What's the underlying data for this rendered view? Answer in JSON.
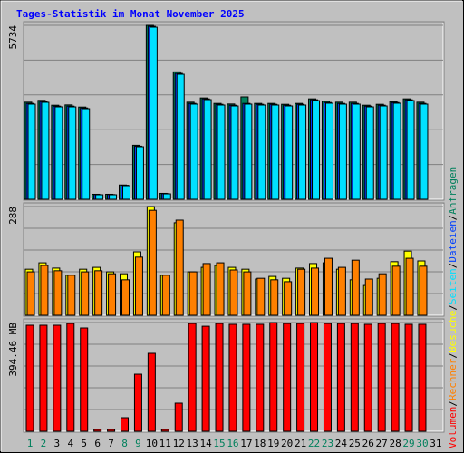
{
  "title": "Tages-Statistik im Monat November 2025",
  "legend_separator": "/",
  "chart_data": [
    {
      "type": "bar",
      "ylim": [
        0,
        5734
      ],
      "yticks": [
        5734
      ],
      "series": [
        {
          "name": "Anfragen",
          "color": "#00805c",
          "values": [
            3200,
            3260,
            3100,
            3110,
            3040,
            165,
            165,
            470,
            1780,
            5734,
            195,
            4200,
            3200,
            3340,
            3160,
            3140,
            3375,
            3160,
            3160,
            3130,
            3160,
            3310,
            3230,
            3200,
            3200,
            3100,
            3130,
            3220,
            3310,
            3200,
            null
          ]
        },
        {
          "name": "Dateien",
          "color": "#0040ff",
          "values": [
            3160,
            3220,
            3070,
            3070,
            3010,
            155,
            155,
            460,
            1750,
            5700,
            185,
            4150,
            3160,
            3310,
            3130,
            3100,
            3160,
            3130,
            3130,
            3100,
            3130,
            3280,
            3190,
            3160,
            3160,
            3070,
            3100,
            3190,
            3280,
            3160,
            null
          ]
        },
        {
          "name": "Seiten",
          "color": "#00e0ff",
          "values": [
            3136,
            3196,
            3046,
            3046,
            2986,
            149,
            149,
            448,
            1732,
            5674,
            179,
            4121,
            3136,
            3285,
            3106,
            3076,
            3136,
            3106,
            3106,
            3076,
            3106,
            3255,
            3166,
            3136,
            3136,
            3046,
            3076,
            3166,
            3255,
            3136,
            null
          ]
        }
      ]
    },
    {
      "type": "bar",
      "ylim": [
        0,
        288
      ],
      "yticks": [
        288
      ],
      "series": [
        {
          "name": "Besuche",
          "color": "#ffff00",
          "values": [
            122,
            139,
            125,
            106,
            122,
            127,
            115,
            110,
            168,
            288,
            106,
            245,
            115,
            127,
            132,
            127,
            122,
            96,
            103,
            98,
            125,
            137,
            139,
            122,
            94,
            79,
            98,
            142,
            170,
            144,
            null
          ]
        },
        {
          "name": "Rechner",
          "color": "#ff8000",
          "values": [
            115,
            132,
            118,
            106,
            115,
            118,
            110,
            94,
            154,
            278,
            106,
            252,
            115,
            137,
            139,
            120,
            115,
            98,
            94,
            89,
            122,
            125,
            151,
            127,
            146,
            96,
            110,
            130,
            151,
            130,
            null
          ]
        }
      ]
    },
    {
      "type": "bar",
      "ylim": [
        0,
        394.46
      ],
      "yticks": [
        {
          "value": 394.46,
          "label": "394.46 MB"
        }
      ],
      "categories": [
        "1",
        "2",
        "3",
        "4",
        "5",
        "6",
        "7",
        "8",
        "9",
        "10",
        "11",
        "12",
        "13",
        "14",
        "15",
        "16",
        "17",
        "18",
        "19",
        "20",
        "21",
        "22",
        "23",
        "24",
        "25",
        "26",
        "27",
        "28",
        "29",
        "30",
        "31"
      ],
      "label_colors": [
        "#00805c",
        "#00805c",
        "#000000",
        "#000000",
        "#000000",
        "#000000",
        "#000000",
        "#00805c",
        "#00805c",
        "#000000",
        "#000000",
        "#000000",
        "#000000",
        "#000000",
        "#00805c",
        "#00805c",
        "#000000",
        "#000000",
        "#000000",
        "#000000",
        "#000000",
        "#00805c",
        "#00805c",
        "#000000",
        "#000000",
        "#000000",
        "#000000",
        "#000000",
        "#00805c",
        "#00805c",
        "#000000"
      ],
      "series": [
        {
          "name": "Volumen",
          "color": "#ff0000",
          "values": [
            384.6,
            384.6,
            384.6,
            391,
            374.7,
            6.6,
            6.6,
            49.3,
            207,
            282.7,
            6.6,
            101.9,
            391,
            381,
            391,
            388,
            388,
            388,
            394.46,
            391,
            391,
            394.46,
            391,
            391,
            391,
            388,
            391,
            391,
            388,
            388,
            null
          ]
        }
      ]
    }
  ]
}
